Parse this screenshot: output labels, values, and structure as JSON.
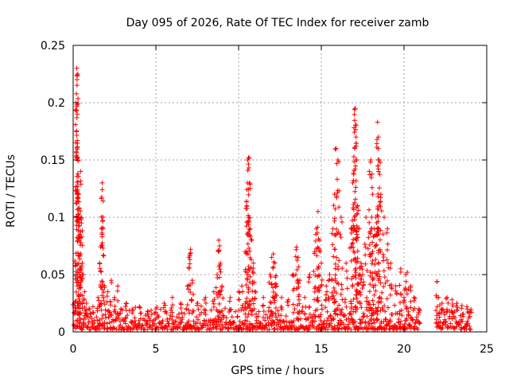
{
  "chart_data": {
    "type": "scatter",
    "title": "Day 095 of 2026, Rate Of TEC Index for receiver zamb",
    "xlabel": "GPS time / hours",
    "ylabel": "ROTI / TECUs",
    "xlim": [
      0,
      25
    ],
    "ylim": [
      0,
      0.25
    ],
    "xticks": [
      0,
      5,
      10,
      15,
      20,
      25
    ],
    "xtick_labels": [
      "0",
      "5",
      "10",
      "15",
      "20",
      "25"
    ],
    "yticks": [
      0,
      0.05,
      0.1,
      0.15,
      0.2,
      0.25
    ],
    "ytick_labels": [
      "0",
      "0.05",
      "0.1",
      "0.15",
      "0.2",
      "0.25"
    ],
    "grid": true,
    "marker": "+",
    "color": "#ff0000",
    "baseline_coverage": [
      [
        0.0,
        20.95
      ],
      [
        21.9,
        24.0
      ]
    ],
    "series": [
      {
        "name": "ROTI",
        "x": [
          0.05,
          0.12,
          0.18,
          0.22,
          0.25,
          0.28,
          0.3,
          0.33,
          0.36,
          0.4,
          0.45,
          0.5,
          0.55,
          0.6,
          0.7,
          0.8,
          1.0,
          1.2,
          1.5,
          1.6,
          1.7,
          1.75,
          1.8,
          1.9,
          2.1,
          2.3,
          2.5,
          2.7,
          2.9,
          3.2,
          3.6,
          4.0,
          4.5,
          5.0,
          5.5,
          6.0,
          6.5,
          6.9,
          7.0,
          7.1,
          7.2,
          7.5,
          8.0,
          8.5,
          8.7,
          8.8,
          8.85,
          8.9,
          9.0,
          9.5,
          10.0,
          10.2,
          10.4,
          10.5,
          10.55,
          10.6,
          10.65,
          10.7,
          10.8,
          10.9,
          11.0,
          11.5,
          11.9,
          12.0,
          12.1,
          12.2,
          12.3,
          12.6,
          13.0,
          13.3,
          13.5,
          13.6,
          13.7,
          14.0,
          14.3,
          14.6,
          14.7,
          14.8,
          14.9,
          15.0,
          15.3,
          15.5,
          15.7,
          15.8,
          15.9,
          16.0,
          16.2,
          16.5,
          16.8,
          16.9,
          17.0,
          17.05,
          17.1,
          17.15,
          17.2,
          17.3,
          17.4,
          17.5,
          17.7,
          17.9,
          18.0,
          18.1,
          18.2,
          18.3,
          18.4,
          18.45,
          18.5,
          18.6,
          18.8,
          19.0,
          19.2,
          19.5,
          19.8,
          20.0,
          20.1,
          20.2,
          20.4,
          20.6,
          20.9,
          22.0,
          22.1,
          22.3,
          22.6,
          22.9,
          23.2,
          23.5,
          23.8,
          24.0
        ],
        "values": [
          0.025,
          0.06,
          0.2,
          0.23,
          0.19,
          0.225,
          0.15,
          0.12,
          0.1,
          0.085,
          0.14,
          0.095,
          0.06,
          0.05,
          0.035,
          0.025,
          0.02,
          0.022,
          0.03,
          0.06,
          0.09,
          0.13,
          0.1,
          0.04,
          0.035,
          0.045,
          0.03,
          0.04,
          0.02,
          0.025,
          0.02,
          0.022,
          0.018,
          0.02,
          0.025,
          0.03,
          0.025,
          0.04,
          0.065,
          0.072,
          0.045,
          0.025,
          0.03,
          0.035,
          0.05,
          0.08,
          0.075,
          0.06,
          0.04,
          0.03,
          0.035,
          0.04,
          0.07,
          0.11,
          0.15,
          0.152,
          0.13,
          0.09,
          0.08,
          0.06,
          0.035,
          0.03,
          0.05,
          0.065,
          0.068,
          0.06,
          0.04,
          0.03,
          0.028,
          0.05,
          0.074,
          0.065,
          0.045,
          0.03,
          0.05,
          0.07,
          0.09,
          0.105,
          0.08,
          0.06,
          0.04,
          0.05,
          0.09,
          0.12,
          0.16,
          0.15,
          0.1,
          0.06,
          0.09,
          0.13,
          0.194,
          0.195,
          0.17,
          0.15,
          0.11,
          0.09,
          0.06,
          0.05,
          0.1,
          0.14,
          0.15,
          0.12,
          0.09,
          0.1,
          0.183,
          0.17,
          0.15,
          0.12,
          0.1,
          0.09,
          0.06,
          0.04,
          0.055,
          0.03,
          0.05,
          0.052,
          0.04,
          0.03,
          0.02,
          0.044,
          0.03,
          0.025,
          0.03,
          0.028,
          0.025,
          0.023,
          0.022,
          0.018
        ]
      }
    ]
  }
}
